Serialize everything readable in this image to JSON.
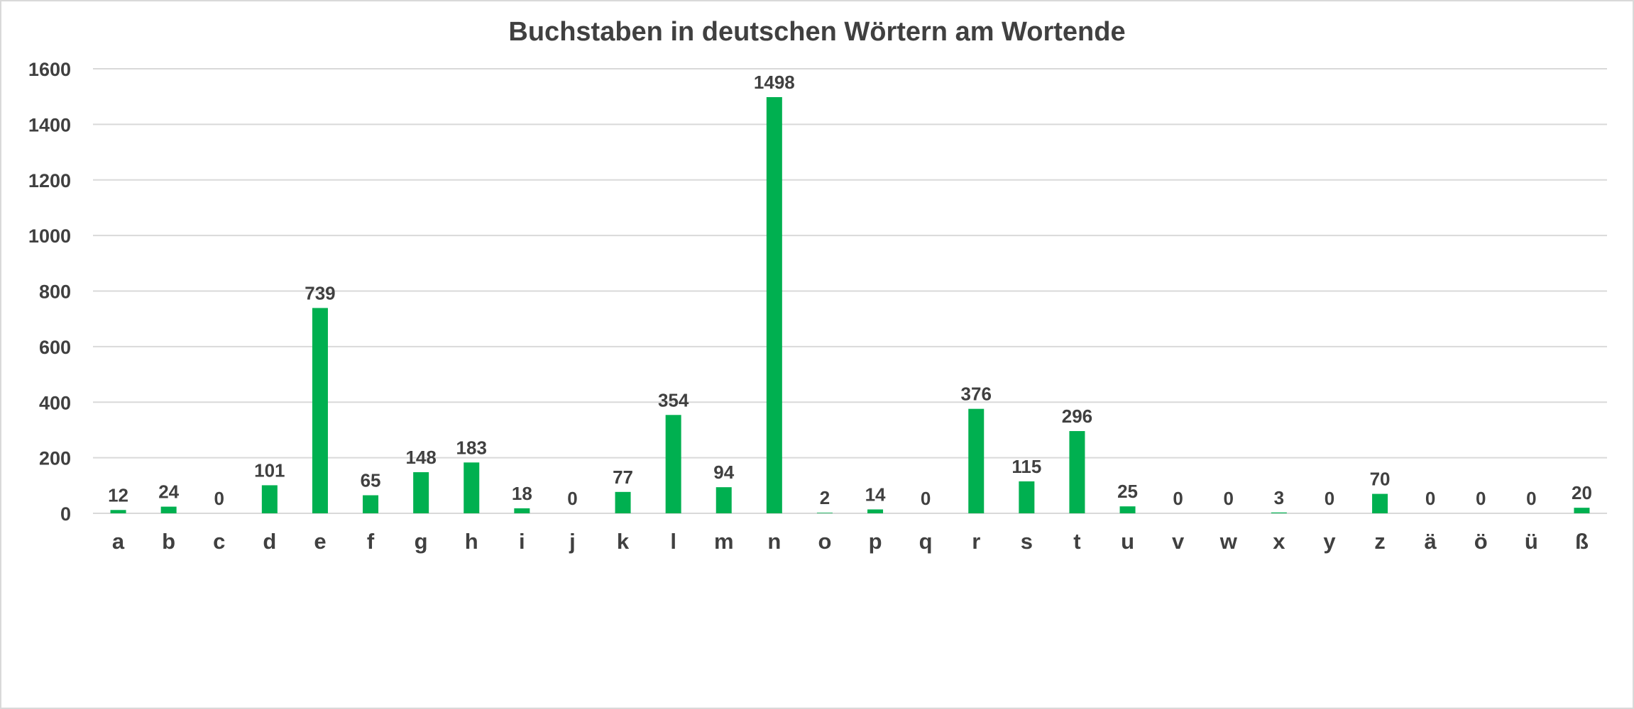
{
  "chart_data": {
    "type": "bar",
    "title": "Buchstaben in deutschen Wörtern am Wortende",
    "xlabel": "",
    "ylabel": "",
    "ylim": [
      0,
      1600
    ],
    "yticks": [
      0,
      200,
      400,
      600,
      800,
      1000,
      1200,
      1400,
      1600
    ],
    "grid": true,
    "legend": "none",
    "bar_color": "#00B050",
    "categories": [
      "a",
      "b",
      "c",
      "d",
      "e",
      "f",
      "g",
      "h",
      "i",
      "j",
      "k",
      "l",
      "m",
      "n",
      "o",
      "p",
      "q",
      "r",
      "s",
      "t",
      "u",
      "v",
      "w",
      "x",
      "y",
      "z",
      "ä",
      "ö",
      "ü",
      "ß"
    ],
    "values": [
      12,
      24,
      0,
      101,
      739,
      65,
      148,
      183,
      18,
      0,
      77,
      354,
      94,
      1498,
      2,
      14,
      0,
      376,
      115,
      296,
      25,
      0,
      0,
      3,
      0,
      70,
      0,
      0,
      0,
      20
    ]
  }
}
